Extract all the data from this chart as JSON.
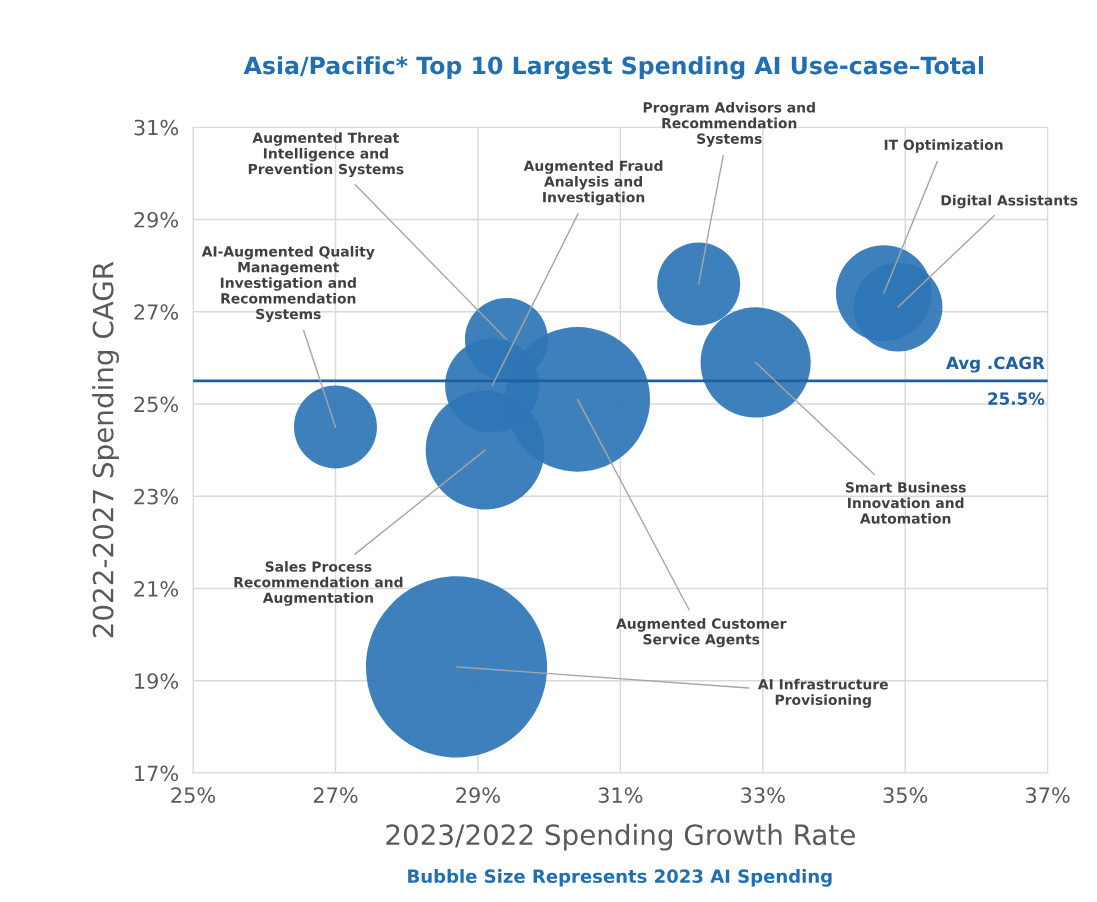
{
  "chart_data": {
    "type": "bubble",
    "title": "Asia/Pacific* Top 10 Largest Spending AI Use-case–Total",
    "xlabel": "2023/2022 Spending Growth Rate",
    "ylabel": "2022-2027 Spending CAGR",
    "x": [
      27.0,
      29.4,
      29.2,
      29.1,
      30.4,
      28.7,
      32.1,
      32.9,
      34.7,
      34.9
    ],
    "values": [
      24.5,
      26.4,
      25.4,
      24.0,
      25.1,
      19.3,
      27.6,
      25.9,
      27.4,
      27.1
    ],
    "sizes": [
      0.21,
      0.21,
      0.27,
      0.43,
      0.64,
      1,
      0.21,
      0.37,
      0.28,
      0.24
    ],
    "color": "#2e75b6",
    "xlim": [
      25,
      37
    ],
    "ylim": [
      17,
      31
    ],
    "xticks": [
      {
        "value": 25,
        "label": "25%"
      },
      {
        "value": 27,
        "label": "27%"
      },
      {
        "value": 29,
        "label": "29%"
      },
      {
        "value": 31,
        "label": "31%"
      },
      {
        "value": 33,
        "label": "33%"
      },
      {
        "value": 35,
        "label": "35%"
      },
      {
        "value": 37,
        "label": "37%"
      }
    ],
    "yticks": [
      {
        "value": 17,
        "label": "17%"
      },
      {
        "value": 19,
        "label": "19%"
      },
      {
        "value": 21,
        "label": "21%"
      },
      {
        "value": 23,
        "label": "23%"
      },
      {
        "value": 25,
        "label": "25%"
      },
      {
        "value": 27,
        "label": "27%"
      },
      {
        "value": 29,
        "label": "29%"
      },
      {
        "value": 31,
        "label": "31%"
      }
    ],
    "grid": true,
    "legend": false,
    "ref_lines": [
      {
        "axis": "y",
        "value": 25.5,
        "label": "Avg .CAGR\n25.5%",
        "color": "#1f5fa0"
      }
    ],
    "annotations": [
      {
        "text": "AI-Augmented Quality\nManagement\nInvestigation and\nRecommendation\nSystems",
        "x": 27.0,
        "y": 24.5
      },
      {
        "text": "Augmented Threat\nIntelligence and\nPrevention Systems",
        "x": 29.4,
        "y": 26.4
      },
      {
        "text": "Augmented Fraud\nAnalysis and\nInvestigation",
        "x": 29.2,
        "y": 25.4
      },
      {
        "text": "Sales Process\nRecommendation and\nAugmentation",
        "x": 29.1,
        "y": 24.0
      },
      {
        "text": "Augmented Customer\nService Agents",
        "x": 30.4,
        "y": 25.1
      },
      {
        "text": "AI Infrastructure\nProvisioning",
        "x": 28.7,
        "y": 19.3
      },
      {
        "text": "Program Advisors and\nRecommendation\nSystems",
        "x": 32.1,
        "y": 27.6
      },
      {
        "text": "Smart Business\nInnovation and\nAutomation",
        "x": 32.9,
        "y": 25.9
      },
      {
        "text": "IT Optimization",
        "x": 34.7,
        "y": 27.4
      },
      {
        "text": "Digital Assistants",
        "x": 34.9,
        "y": 27.1
      },
      "Bubble Size Represents 2023 AI Spending"
    ]
  }
}
